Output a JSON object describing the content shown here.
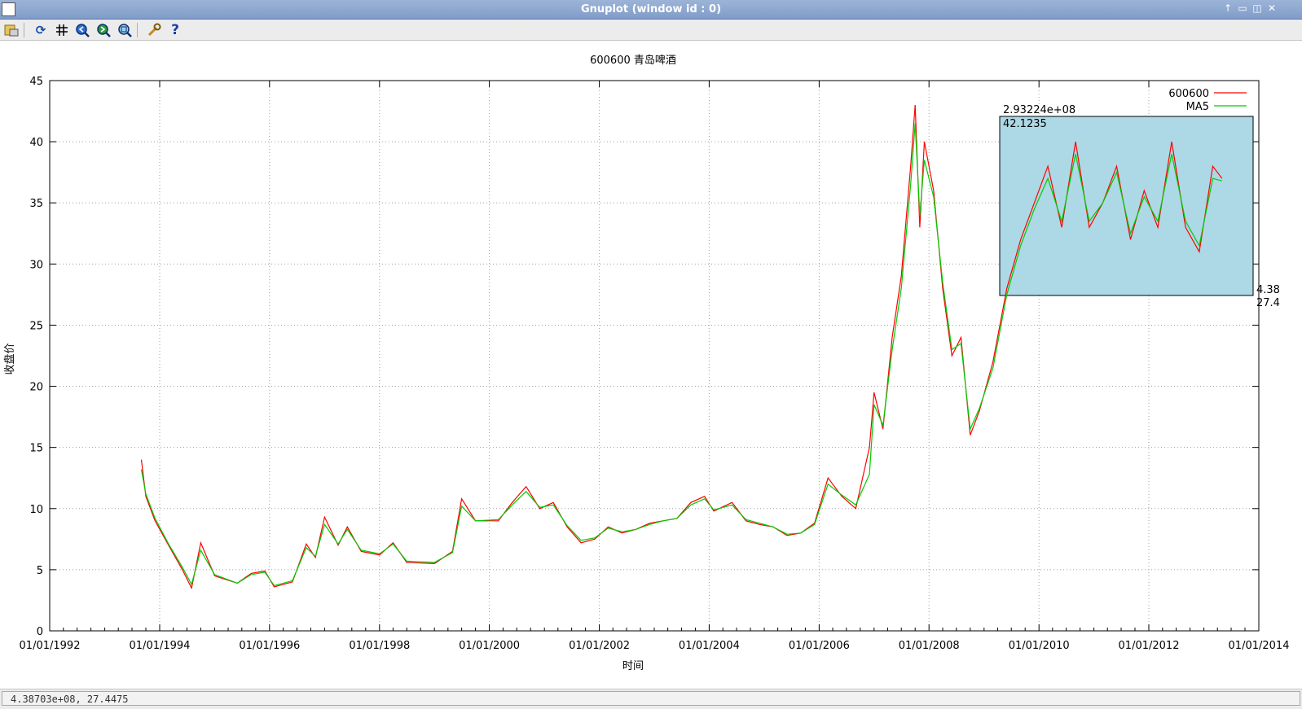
{
  "window": {
    "title": "Gnuplot (window id : 0)"
  },
  "toolbar": {
    "items": [
      {
        "name": "export-icon"
      },
      {
        "name": "replot-icon"
      },
      {
        "name": "grid-icon"
      },
      {
        "name": "zoom-previous-icon"
      },
      {
        "name": "zoom-next-icon"
      },
      {
        "name": "autoscale-icon"
      },
      {
        "name": "preferences-icon"
      },
      {
        "name": "help-icon"
      }
    ]
  },
  "status": {
    "coords": "4.38703e+08,  27.4475"
  },
  "colors": {
    "series1": "#ff0000",
    "series2": "#00cc00",
    "zoom_box": "#add8e6"
  },
  "zoom": {
    "start_label_x": "2.93224e+08",
    "start_label_y": "42.1235",
    "end_label_x": "4.38",
    "end_label_y": "27.4"
  },
  "chart_data": {
    "type": "line",
    "title": "600600 青岛啤酒",
    "xlabel": "时间",
    "ylabel": "收盘价",
    "ylim": [
      0,
      45
    ],
    "yticks": [
      0,
      5,
      10,
      15,
      20,
      25,
      30,
      35,
      40,
      45
    ],
    "xlim": [
      "1992-01-01",
      "2013-01-01"
    ],
    "xticks": [
      "01/01/1992",
      "01/01/1994",
      "01/01/1996",
      "01/01/1998",
      "01/01/2000",
      "01/01/2002",
      "01/01/2004",
      "01/01/2006",
      "01/01/2008",
      "01/01/2010",
      "01/01/2012",
      "01/01/2014"
    ],
    "grid": true,
    "legend": "top-right",
    "series": [
      {
        "name": "600600",
        "color": "#ff0000",
        "points": [
          [
            "1993-09-01",
            14.0
          ],
          [
            "1993-10-01",
            11.0
          ],
          [
            "1993-12-01",
            9.0
          ],
          [
            "1994-03-01",
            7.0
          ],
          [
            "1994-06-01",
            5.0
          ],
          [
            "1994-08-01",
            3.5
          ],
          [
            "1994-10-01",
            7.2
          ],
          [
            "1995-01-01",
            4.5
          ],
          [
            "1995-06-01",
            3.9
          ],
          [
            "1995-09-01",
            4.7
          ],
          [
            "1995-12-01",
            4.9
          ],
          [
            "1996-02-01",
            3.6
          ],
          [
            "1996-06-01",
            4.0
          ],
          [
            "1996-09-01",
            7.1
          ],
          [
            "1996-11-01",
            6.0
          ],
          [
            "1997-01-01",
            9.3
          ],
          [
            "1997-04-01",
            7.0
          ],
          [
            "1997-06-01",
            8.5
          ],
          [
            "1997-09-01",
            6.5
          ],
          [
            "1998-01-01",
            6.2
          ],
          [
            "1998-04-01",
            7.2
          ],
          [
            "1998-07-01",
            5.6
          ],
          [
            "1999-01-01",
            5.5
          ],
          [
            "1999-05-01",
            6.5
          ],
          [
            "1999-07-01",
            10.8
          ],
          [
            "1999-10-01",
            9.0
          ],
          [
            "2000-03-01",
            9.0
          ],
          [
            "2000-06-01",
            10.5
          ],
          [
            "2000-09-01",
            11.8
          ],
          [
            "2000-12-01",
            10.0
          ],
          [
            "2001-03-01",
            10.5
          ],
          [
            "2001-06-01",
            8.5
          ],
          [
            "2001-09-01",
            7.2
          ],
          [
            "2001-12-01",
            7.5
          ],
          [
            "2002-03-01",
            8.5
          ],
          [
            "2002-06-01",
            8.0
          ],
          [
            "2002-09-01",
            8.3
          ],
          [
            "2002-12-01",
            8.8
          ],
          [
            "2003-03-01",
            9.0
          ],
          [
            "2003-06-01",
            9.2
          ],
          [
            "2003-09-01",
            10.5
          ],
          [
            "2003-12-01",
            11.0
          ],
          [
            "2004-02-01",
            9.8
          ],
          [
            "2004-06-01",
            10.5
          ],
          [
            "2004-09-01",
            9.0
          ],
          [
            "2004-12-01",
            8.7
          ],
          [
            "2005-03-01",
            8.5
          ],
          [
            "2005-06-01",
            7.8
          ],
          [
            "2005-09-01",
            8.0
          ],
          [
            "2005-12-01",
            8.8
          ],
          [
            "2006-03-01",
            12.5
          ],
          [
            "2006-06-01",
            11.0
          ],
          [
            "2006-09-01",
            10.0
          ],
          [
            "2006-12-01",
            15.0
          ],
          [
            "2007-01-01",
            19.5
          ],
          [
            "2007-03-01",
            16.5
          ],
          [
            "2007-05-01",
            24.0
          ],
          [
            "2007-07-01",
            29.0
          ],
          [
            "2007-09-01",
            38.0
          ],
          [
            "2007-10-01",
            43.0
          ],
          [
            "2007-11-01",
            33.0
          ],
          [
            "2007-12-01",
            40.0
          ],
          [
            "2008-02-01",
            36.0
          ],
          [
            "2008-04-01",
            28.0
          ],
          [
            "2008-06-01",
            22.5
          ],
          [
            "2008-08-01",
            24.0
          ],
          [
            "2008-10-01",
            16.0
          ],
          [
            "2008-12-01",
            18.0
          ],
          [
            "2009-03-01",
            22.0
          ],
          [
            "2009-06-01",
            28.0
          ],
          [
            "2009-09-01",
            32.0
          ],
          [
            "2009-12-01",
            35.0
          ],
          [
            "2010-03-01",
            38.0
          ],
          [
            "2010-06-01",
            33.0
          ],
          [
            "2010-09-01",
            40.0
          ],
          [
            "2010-12-01",
            33.0
          ],
          [
            "2011-03-01",
            35.0
          ],
          [
            "2011-06-01",
            38.0
          ],
          [
            "2011-09-01",
            32.0
          ],
          [
            "2011-12-01",
            36.0
          ],
          [
            "2012-03-01",
            33.0
          ],
          [
            "2012-06-01",
            40.0
          ],
          [
            "2012-09-01",
            33.0
          ],
          [
            "2012-12-01",
            31.0
          ],
          [
            "2013-03-01",
            38.0
          ],
          [
            "2013-05-01",
            37.0
          ]
        ]
      },
      {
        "name": "MA5",
        "color": "#00cc00",
        "points": [
          [
            "1993-09-01",
            13.2
          ],
          [
            "1993-10-01",
            11.2
          ],
          [
            "1993-12-01",
            9.2
          ],
          [
            "1994-03-01",
            7.1
          ],
          [
            "1994-06-01",
            5.2
          ],
          [
            "1994-08-01",
            3.8
          ],
          [
            "1994-10-01",
            6.6
          ],
          [
            "1995-01-01",
            4.6
          ],
          [
            "1995-06-01",
            3.9
          ],
          [
            "1995-09-01",
            4.6
          ],
          [
            "1995-12-01",
            4.8
          ],
          [
            "1996-02-01",
            3.7
          ],
          [
            "1996-06-01",
            4.1
          ],
          [
            "1996-09-01",
            6.8
          ],
          [
            "1996-11-01",
            6.1
          ],
          [
            "1997-01-01",
            8.7
          ],
          [
            "1997-04-01",
            7.1
          ],
          [
            "1997-06-01",
            8.3
          ],
          [
            "1997-09-01",
            6.6
          ],
          [
            "1998-01-01",
            6.3
          ],
          [
            "1998-04-01",
            7.1
          ],
          [
            "1998-07-01",
            5.7
          ],
          [
            "1999-01-01",
            5.6
          ],
          [
            "1999-05-01",
            6.4
          ],
          [
            "1999-07-01",
            10.2
          ],
          [
            "1999-10-01",
            9.0
          ],
          [
            "2000-03-01",
            9.1
          ],
          [
            "2000-06-01",
            10.3
          ],
          [
            "2000-09-01",
            11.4
          ],
          [
            "2000-12-01",
            10.1
          ],
          [
            "2001-03-01",
            10.3
          ],
          [
            "2001-06-01",
            8.6
          ],
          [
            "2001-09-01",
            7.4
          ],
          [
            "2001-12-01",
            7.6
          ],
          [
            "2002-03-01",
            8.4
          ],
          [
            "2002-06-01",
            8.1
          ],
          [
            "2002-09-01",
            8.3
          ],
          [
            "2002-12-01",
            8.7
          ],
          [
            "2003-03-01",
            9.0
          ],
          [
            "2003-06-01",
            9.2
          ],
          [
            "2003-09-01",
            10.3
          ],
          [
            "2003-12-01",
            10.8
          ],
          [
            "2004-02-01",
            9.9
          ],
          [
            "2004-06-01",
            10.3
          ],
          [
            "2004-09-01",
            9.1
          ],
          [
            "2004-12-01",
            8.8
          ],
          [
            "2005-03-01",
            8.5
          ],
          [
            "2005-06-01",
            7.9
          ],
          [
            "2005-09-01",
            8.0
          ],
          [
            "2005-12-01",
            8.7
          ],
          [
            "2006-03-01",
            12.0
          ],
          [
            "2006-06-01",
            11.1
          ],
          [
            "2006-09-01",
            10.3
          ],
          [
            "2006-12-01",
            12.8
          ],
          [
            "2007-01-01",
            18.5
          ],
          [
            "2007-03-01",
            16.8
          ],
          [
            "2007-05-01",
            23.0
          ],
          [
            "2007-07-01",
            28.0
          ],
          [
            "2007-09-01",
            36.5
          ],
          [
            "2007-10-01",
            41.5
          ],
          [
            "2007-11-01",
            34.0
          ],
          [
            "2007-12-01",
            38.5
          ],
          [
            "2008-02-01",
            35.5
          ],
          [
            "2008-04-01",
            28.5
          ],
          [
            "2008-06-01",
            23.0
          ],
          [
            "2008-08-01",
            23.5
          ],
          [
            "2008-10-01",
            16.5
          ],
          [
            "2008-12-01",
            18.2
          ],
          [
            "2009-03-01",
            21.5
          ],
          [
            "2009-06-01",
            27.5
          ],
          [
            "2009-09-01",
            31.5
          ],
          [
            "2009-12-01",
            34.5
          ],
          [
            "2010-03-01",
            37.0
          ],
          [
            "2010-06-01",
            33.5
          ],
          [
            "2010-09-01",
            39.0
          ],
          [
            "2010-12-01",
            33.5
          ],
          [
            "2011-03-01",
            35.0
          ],
          [
            "2011-06-01",
            37.5
          ],
          [
            "2011-09-01",
            32.5
          ],
          [
            "2011-12-01",
            35.5
          ],
          [
            "2012-03-01",
            33.5
          ],
          [
            "2012-06-01",
            39.0
          ],
          [
            "2012-09-01",
            33.5
          ],
          [
            "2012-12-01",
            31.5
          ],
          [
            "2013-03-01",
            37.0
          ],
          [
            "2013-05-01",
            36.8
          ]
        ]
      }
    ]
  }
}
